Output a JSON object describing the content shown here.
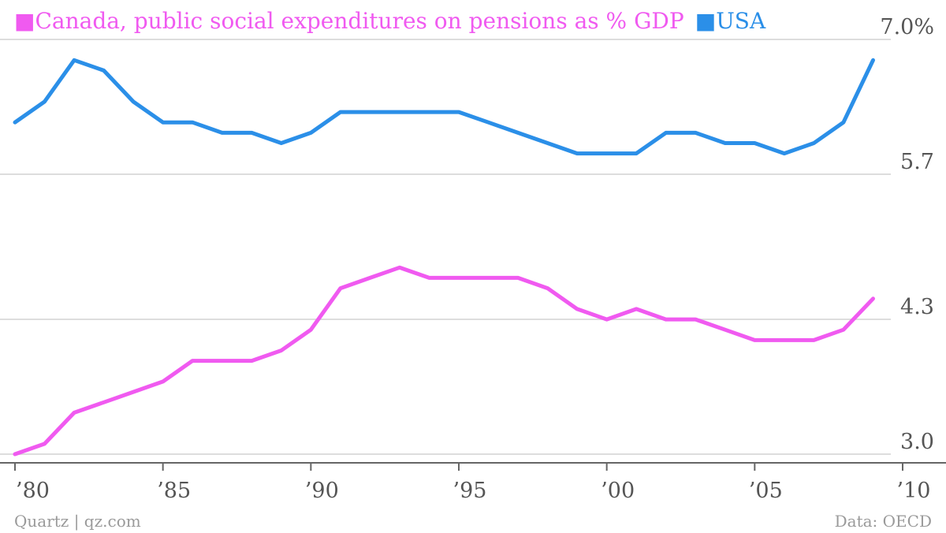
{
  "chart_data": {
    "type": "line",
    "title": "",
    "x": [
      1980,
      1981,
      1982,
      1983,
      1984,
      1985,
      1986,
      1987,
      1988,
      1989,
      1990,
      1991,
      1992,
      1993,
      1994,
      1995,
      1996,
      1997,
      1998,
      1999,
      2000,
      2001,
      2002,
      2003,
      2004,
      2005,
      2006,
      2007,
      2008,
      2009
    ],
    "series": [
      {
        "name": "Canada, public social expenditures on pensions as % GDP",
        "color": "#f05af0",
        "values": [
          3.0,
          3.1,
          3.4,
          3.5,
          3.6,
          3.7,
          3.9,
          3.9,
          3.9,
          4.0,
          4.2,
          4.6,
          4.7,
          4.8,
          4.7,
          4.7,
          4.7,
          4.7,
          4.6,
          4.4,
          4.3,
          4.4,
          4.3,
          4.3,
          4.2,
          4.1,
          4.1,
          4.1,
          4.2,
          4.5
        ]
      },
      {
        "name": "USA",
        "color": "#2b8fe8",
        "values": [
          6.2,
          6.4,
          6.8,
          6.7,
          6.4,
          6.2,
          6.2,
          6.1,
          6.1,
          6.0,
          6.1,
          6.3,
          6.3,
          6.3,
          6.3,
          6.3,
          6.2,
          6.1,
          6.0,
          5.9,
          5.9,
          5.9,
          6.1,
          6.1,
          6.0,
          6.0,
          5.9,
          6.0,
          6.2,
          6.8
        ]
      }
    ],
    "xlim": [
      1980,
      2010
    ],
    "ylim": [
      3.0,
      7.0
    ],
    "y_ticks": [
      {
        "value": 7.0,
        "label": "7.0%"
      },
      {
        "value": 5.7,
        "label": "5.7"
      },
      {
        "value": 4.3,
        "label": "4.3"
      },
      {
        "value": 3.0,
        "label": "3.0"
      }
    ],
    "x_ticks": [
      {
        "value": 1980,
        "label": "’80"
      },
      {
        "value": 1985,
        "label": "’85"
      },
      {
        "value": 1990,
        "label": "’90"
      },
      {
        "value": 1995,
        "label": "’95"
      },
      {
        "value": 2000,
        "label": "’00"
      },
      {
        "value": 2005,
        "label": "’05"
      },
      {
        "value": 2010,
        "label": "’10"
      }
    ],
    "grid": true,
    "legend_position": "top-left",
    "legend_marker": "■"
  },
  "footer": {
    "source_left": "Quartz | qz.com",
    "source_right": "Data: OECD"
  },
  "colors": {
    "grid": "#dddddd",
    "axis": "#666666",
    "tick_text": "#555555",
    "footer_text": "#9a9a9a"
  }
}
